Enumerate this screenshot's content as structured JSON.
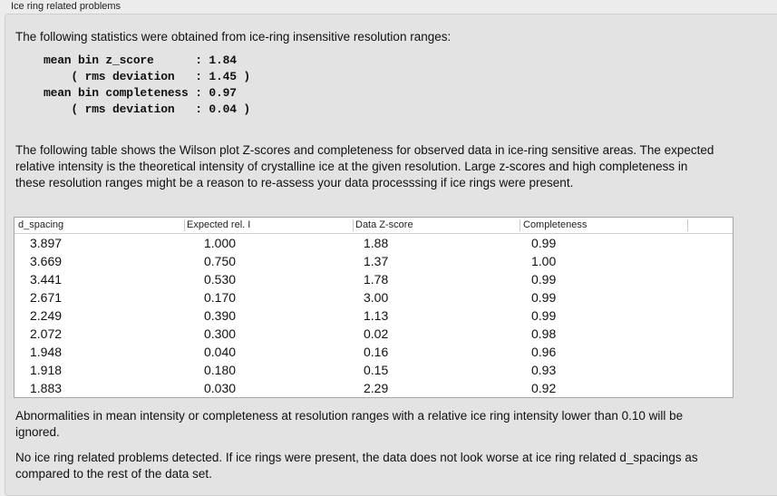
{
  "group_title": "Ice ring related problems",
  "intro": "The following statistics were obtained from ice-ring insensitive resolution ranges:",
  "stats_block": "mean bin z_score      : 1.84\n    ( rms deviation   : 1.45 )\nmean bin completeness : 0.97\n    ( rms deviation   : 0.04 )",
  "table_description": "The following table shows the Wilson plot Z-scores and completeness for observed data in ice-ring sensitive areas. The expected relative intensity is the theoretical intensity of crystalline ice at the given resolution. Large z-scores and high completeness in these resolution ranges might be a reason to re-assess your data processsing if ice rings were present.",
  "table": {
    "columns": [
      "d_spacing",
      "Expected rel. I",
      "Data Z-score",
      "Completeness"
    ],
    "rows": [
      [
        "3.897",
        "1.000",
        "1.88",
        "0.99"
      ],
      [
        "3.669",
        "0.750",
        "1.37",
        "1.00"
      ],
      [
        "3.441",
        "0.530",
        "1.78",
        "0.99"
      ],
      [
        "2.671",
        "0.170",
        "3.00",
        "0.99"
      ],
      [
        "2.249",
        "0.390",
        "1.13",
        "0.99"
      ],
      [
        "2.072",
        "0.300",
        "0.02",
        "0.98"
      ],
      [
        "1.948",
        "0.040",
        "0.16",
        "0.96"
      ],
      [
        "1.918",
        "0.180",
        "0.15",
        "0.93"
      ],
      [
        "1.883",
        "0.030",
        "2.29",
        "0.92"
      ]
    ]
  },
  "note": "Abnormalities in mean intensity or completeness at resolution ranges with a relative ice ring intensity lower than 0.10 will be ignored.",
  "conclusion": "No ice ring related problems detected. If ice rings were present, the data does not look worse at ice ring related d_spacings as compared to the rest of the data set."
}
